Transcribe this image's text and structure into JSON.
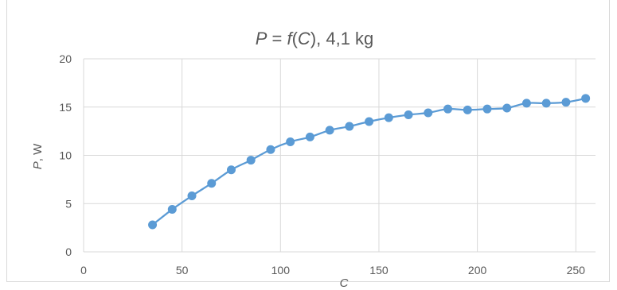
{
  "chart_data": {
    "type": "line",
    "title_parts": [
      "P",
      " = ",
      "f",
      "(",
      "C",
      "), 4,1 kg"
    ],
    "title": "P = f(C), 4,1 kg",
    "xlabel": "C",
    "ylabel_parts": [
      "P",
      ", W"
    ],
    "ylabel": "P, W",
    "xlim": [
      0,
      260
    ],
    "ylim": [
      0,
      20
    ],
    "xticks": [
      0,
      50,
      100,
      150,
      200,
      250
    ],
    "yticks": [
      0,
      5,
      10,
      15,
      20
    ],
    "grid": true,
    "line_color": "#5b9bd5",
    "series": [
      {
        "x": [
          35,
          45,
          55,
          65,
          75,
          85,
          95,
          105,
          115,
          125,
          135,
          145,
          155,
          165,
          175,
          185,
          195,
          205,
          215,
          225,
          235,
          245,
          255
        ],
        "values": [
          2.8,
          4.4,
          5.8,
          7.1,
          8.5,
          9.5,
          10.6,
          11.4,
          11.9,
          12.6,
          13.0,
          13.5,
          13.9,
          14.2,
          14.4,
          14.8,
          14.7,
          14.8,
          14.9,
          15.4,
          15.4,
          15.5,
          15.9
        ]
      }
    ]
  }
}
